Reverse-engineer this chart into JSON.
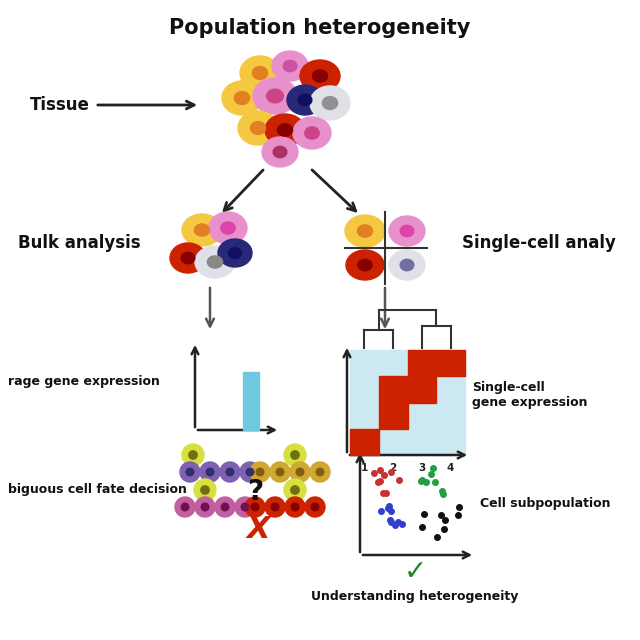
{
  "title": "Population heterogeneity",
  "tissue_label": "Tissue",
  "bulk_label": "Bulk analysis",
  "singlecell_label": "Single-cell analy",
  "avg_gene_label": "rage gene expression",
  "ambiguous_label": "biguous cell fate decision",
  "singlecell_gene_label": "Single-cell\ngene expression",
  "cell_subpop_label": "Cell subpopulation",
  "understanding_label": "Understanding heterogeneity",
  "background_color": "#ffffff",
  "heatmap_bg": "#cce8f0",
  "heatmap_red": "#cc2200",
  "bar_color": "#70c8e0",
  "cell_colors": {
    "yellow": "#f5c842",
    "pink": "#e890cc",
    "red": "#cc2200",
    "white_gray": "#e0e0e8",
    "blue_dark": "#282878",
    "orange": "#e08020",
    "purple": "#9050b0",
    "green_yellow": "#d8e040",
    "olive": "#d0a830",
    "purple2": "#c060a0",
    "blue_purple": "#8060b0"
  }
}
